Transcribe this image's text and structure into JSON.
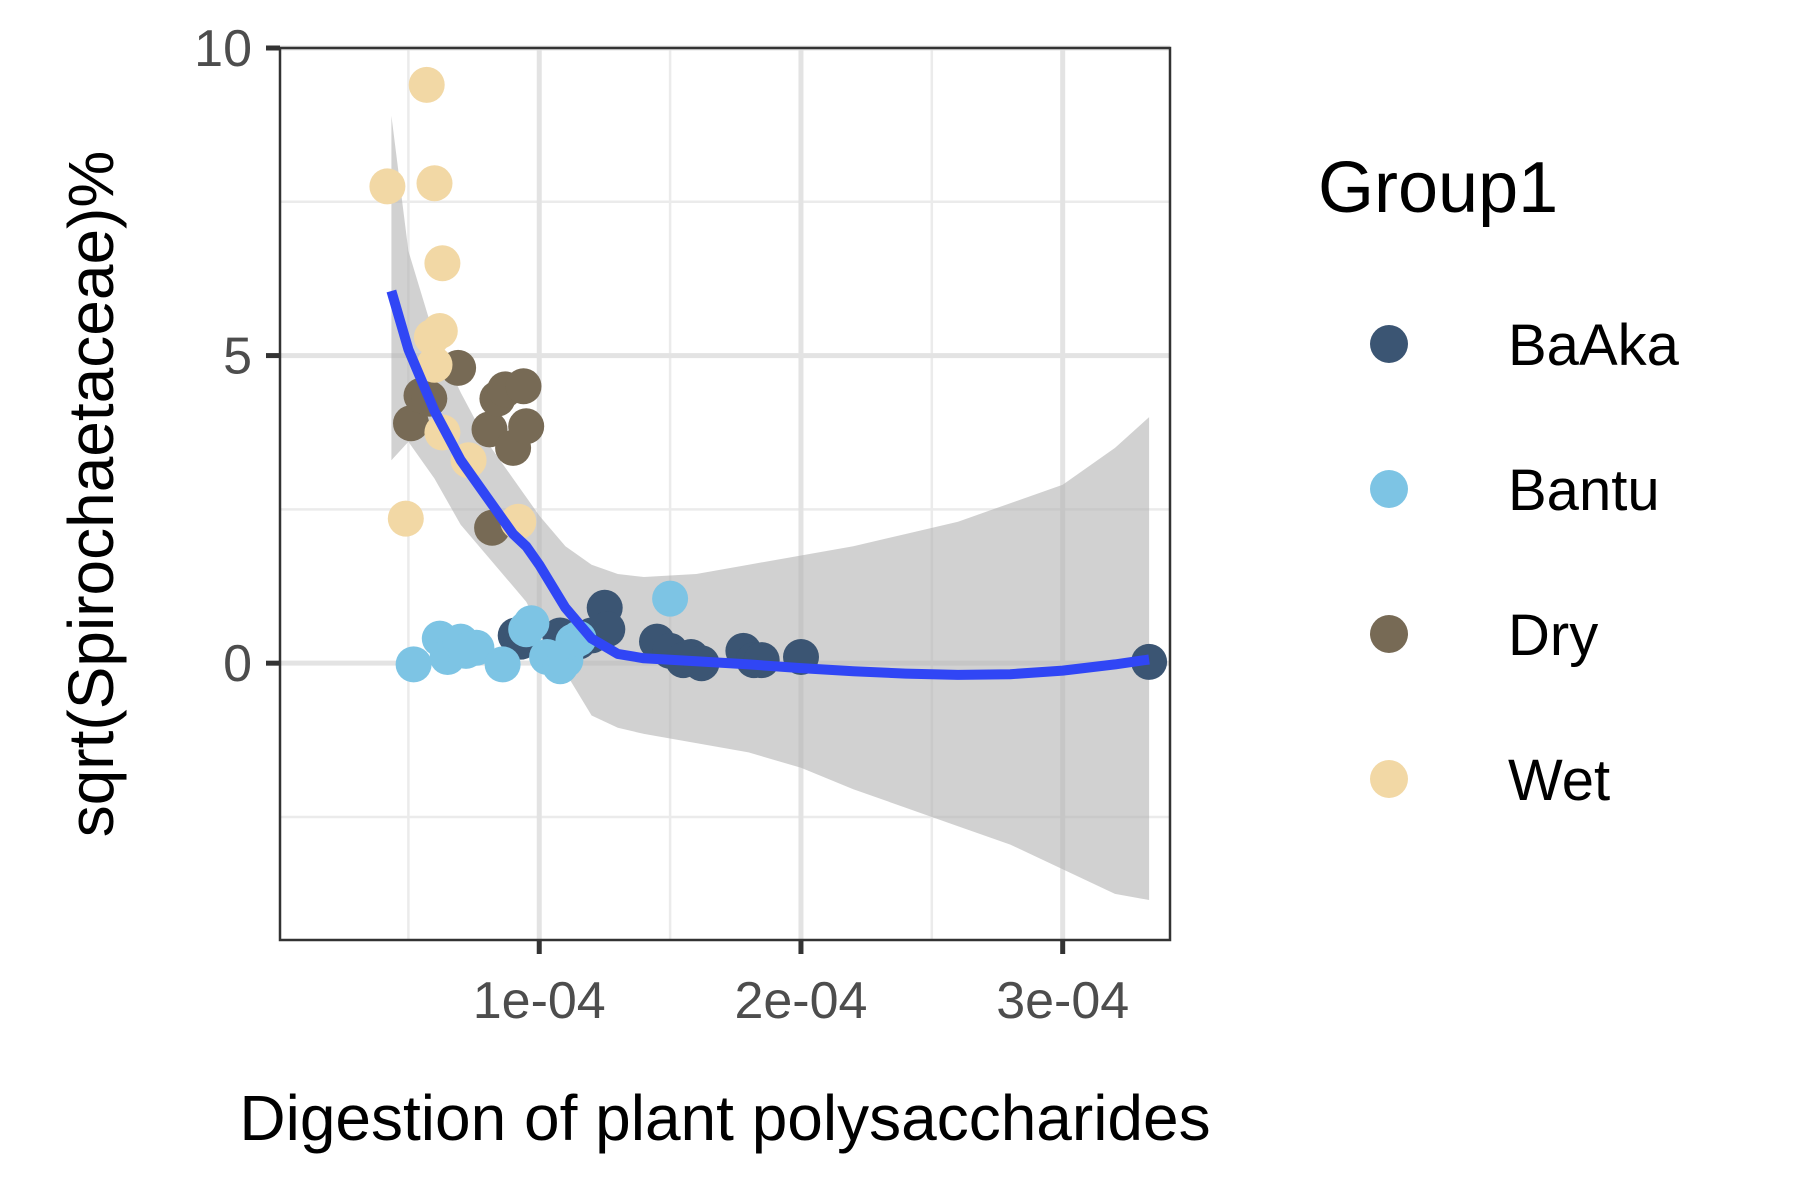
{
  "chart_data": {
    "type": "scatter",
    "xlabel": "Digestion of plant polysaccharides",
    "ylabel": "sqrt(Spirochaetaceae)%",
    "xlim": [
      9.5e-07,
      0.000341
    ],
    "ylim": [
      -4.5,
      10
    ],
    "x_ticks": [
      {
        "value": 0.0001,
        "label": "1e-04"
      },
      {
        "value": 0.0002,
        "label": "2e-04"
      },
      {
        "value": 0.0003,
        "label": "3e-04"
      }
    ],
    "x_minor": [
      5e-05,
      0.00015,
      0.00025
    ],
    "y_ticks": [
      {
        "value": 0,
        "label": "0"
      },
      {
        "value": 5,
        "label": "5"
      },
      {
        "value": 10,
        "label": "10"
      }
    ],
    "y_minor": [
      -2.5,
      2.5,
      7.5
    ],
    "grid": true,
    "legend": {
      "title": "Group1",
      "position": "right"
    },
    "series": [
      {
        "name": "BaAka",
        "color": "#3b5573",
        "points": [
          [
            9.1e-05,
            0.45
          ],
          [
            9.3e-05,
            0.35
          ],
          [
            0.000108,
            0.45
          ],
          [
            0.000115,
            0.35
          ],
          [
            0.00012,
            0.45
          ],
          [
            0.000125,
            0.9
          ],
          [
            0.000126,
            0.55
          ],
          [
            0.000145,
            0.35
          ],
          [
            0.00015,
            0.2
          ],
          [
            0.000155,
            0.05
          ],
          [
            0.000158,
            0.1
          ],
          [
            0.000162,
            0.0
          ],
          [
            0.000178,
            0.2
          ],
          [
            0.000182,
            0.05
          ],
          [
            0.000185,
            0.05
          ],
          [
            0.0002,
            0.1
          ],
          [
            0.000333,
            0.02
          ]
        ]
      },
      {
        "name": "Bantu",
        "color": "#7dc4e4",
        "points": [
          [
            5.2e-05,
            -0.02
          ],
          [
            6.2e-05,
            0.4
          ],
          [
            6.5e-05,
            0.1
          ],
          [
            6.8e-05,
            0.3
          ],
          [
            7e-05,
            0.35
          ],
          [
            7.2e-05,
            0.2
          ],
          [
            7.6e-05,
            0.25
          ],
          [
            8.6e-05,
            -0.02
          ],
          [
            9.5e-05,
            0.55
          ],
          [
            9.7e-05,
            0.65
          ],
          [
            0.000103,
            0.1
          ],
          [
            0.000108,
            -0.05
          ],
          [
            0.00011,
            0.05
          ],
          [
            0.000113,
            0.35
          ],
          [
            0.000115,
            0.4
          ],
          [
            0.00015,
            1.05
          ]
        ]
      },
      {
        "name": "Dry",
        "color": "#776a55",
        "points": [
          [
            5.1e-05,
            3.9
          ],
          [
            5.5e-05,
            4.35
          ],
          [
            5.8e-05,
            4.3
          ],
          [
            6.9e-05,
            4.8
          ],
          [
            8.1e-05,
            3.8
          ],
          [
            8.4e-05,
            4.3
          ],
          [
            8.7e-05,
            4.45
          ],
          [
            9e-05,
            3.5
          ],
          [
            9.4e-05,
            4.5
          ],
          [
            9.5e-05,
            3.85
          ],
          [
            8.2e-05,
            2.2
          ]
        ]
      },
      {
        "name": "Wet",
        "color": "#f2d8a5",
        "points": [
          [
            4.2e-05,
            7.75
          ],
          [
            4.9e-05,
            2.35
          ],
          [
            5.7e-05,
            9.4
          ],
          [
            6e-05,
            7.8
          ],
          [
            6.3e-05,
            6.5
          ],
          [
            5.9e-05,
            5.3
          ],
          [
            6.2e-05,
            5.4
          ],
          [
            6e-05,
            4.85
          ],
          [
            6.3e-05,
            3.75
          ],
          [
            7.3e-05,
            3.3
          ],
          [
            9.2e-05,
            2.3
          ]
        ]
      }
    ],
    "smooth": {
      "color": "#3046f5",
      "ribbon_color": "#b3b3b3",
      "x": [
        4.35e-05,
        5e-05,
        6e-05,
        7e-05,
        8e-05,
        9e-05,
        9.5e-05,
        0.0001,
        0.00011,
        0.00012,
        0.00013,
        0.00014,
        0.00016,
        0.00018,
        0.0002,
        0.00022,
        0.00024,
        0.00026,
        0.00028,
        0.0003,
        0.00032,
        0.000333
      ],
      "y": [
        6.05,
        5.1,
        4.1,
        3.3,
        2.7,
        2.1,
        1.9,
        1.6,
        0.9,
        0.4,
        0.15,
        0.08,
        0.03,
        -0.02,
        -0.08,
        -0.13,
        -0.17,
        -0.19,
        -0.18,
        -0.12,
        -0.02,
        0.06
      ],
      "upper": [
        8.9,
        6.7,
        5.3,
        4.4,
        3.6,
        3.0,
        2.7,
        2.4,
        1.9,
        1.6,
        1.45,
        1.4,
        1.45,
        1.6,
        1.75,
        1.9,
        2.1,
        2.3,
        2.6,
        2.9,
        3.5,
        4.0
      ],
      "lower": [
        3.3,
        3.6,
        3.0,
        2.25,
        1.75,
        1.25,
        1.0,
        0.6,
        -0.15,
        -0.85,
        -1.05,
        -1.15,
        -1.3,
        -1.45,
        -1.7,
        -2.05,
        -2.35,
        -2.65,
        -2.95,
        -3.35,
        -3.75,
        -3.85
      ]
    }
  }
}
